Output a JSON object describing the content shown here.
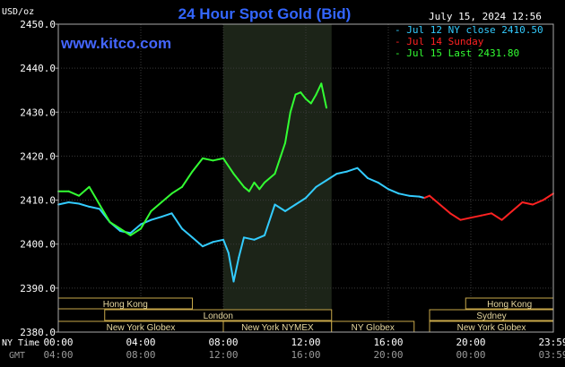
{
  "chart_data": {
    "type": "line",
    "title": "24 Hour Spot Gold (Bid)",
    "ylabel": "USD/oz",
    "timestamp": "July 15, 2024 12:56",
    "watermark": "www.kitco.com",
    "ylim": [
      2380,
      2450
    ],
    "yticks": [
      {
        "value": 2450,
        "label": "2450.0"
      },
      {
        "value": 2440,
        "label": "2440.0"
      },
      {
        "value": 2430,
        "label": "2430.0"
      },
      {
        "value": 2420,
        "label": "2420.0"
      },
      {
        "value": 2410,
        "label": "2410.0"
      },
      {
        "value": 2400,
        "label": "2400.0"
      },
      {
        "value": 2390,
        "label": "2390.0"
      },
      {
        "value": 2380,
        "label": "2380.0"
      }
    ],
    "xlim": [
      0,
      24
    ],
    "xticks_ny": [
      {
        "value": 0,
        "label": "00:00"
      },
      {
        "value": 4,
        "label": "04:00"
      },
      {
        "value": 8,
        "label": "08:00"
      },
      {
        "value": 12,
        "label": "12:00"
      },
      {
        "value": 16,
        "label": "16:00"
      },
      {
        "value": 20,
        "label": "20:00"
      },
      {
        "value": 24,
        "label": "23:59"
      }
    ],
    "xticks_gmt": [
      {
        "value": 0,
        "label": "04:00"
      },
      {
        "value": 4,
        "label": "08:00"
      },
      {
        "value": 8,
        "label": "12:00"
      },
      {
        "value": 12,
        "label": "16:00"
      },
      {
        "value": 16,
        "label": "20:00"
      },
      {
        "value": 20,
        "label": "00:00"
      },
      {
        "value": 24,
        "label": "03:59"
      }
    ],
    "row_labels": {
      "ny": "NY Time",
      "gmt": "GMT"
    },
    "highlight_range": [
      8,
      13.25
    ],
    "legend": [
      {
        "label": "Jul 12 NY close 2410.50",
        "color": "#33ccff"
      },
      {
        "label": "Jul 14 Sunday",
        "color": "#ff2222"
      },
      {
        "label": "Jul 15 Last 2431.80",
        "color": "#33ff33"
      }
    ],
    "series": [
      {
        "name": "Jul 12 NY close 2410.50",
        "color": "#33ccff",
        "x": [
          0,
          0.5,
          1,
          1.5,
          2,
          2.5,
          3,
          3.5,
          4,
          4.5,
          5,
          5.5,
          6,
          6.5,
          7,
          7.5,
          8,
          8.25,
          8.5,
          8.75,
          9,
          9.5,
          10,
          10.5,
          11,
          11.5,
          12,
          12.5,
          13,
          13.5,
          14,
          14.5,
          15,
          15.5,
          16,
          16.5,
          17,
          17.5,
          17.75
        ],
        "values": [
          2409,
          2409.5,
          2409.2,
          2408.5,
          2408,
          2405,
          2403,
          2402.5,
          2404.5,
          2405.5,
          2406.2,
          2407,
          2403.5,
          2401.5,
          2399.5,
          2400.5,
          2401,
          2398,
          2391.5,
          2397,
          2401.5,
          2401,
          2402,
          2409,
          2407.5,
          2409,
          2410.5,
          2413,
          2414.5,
          2416,
          2416.5,
          2417.3,
          2415,
          2414,
          2412.5,
          2411.5,
          2411,
          2410.8,
          2410.5
        ]
      },
      {
        "name": "Jul 14 Sunday",
        "color": "#ff2222",
        "x": [
          17.75,
          18,
          18.5,
          19,
          19.5,
          20,
          20.5,
          21,
          21.5,
          22,
          22.5,
          23,
          23.5,
          24
        ],
        "values": [
          2410.5,
          2411,
          2409,
          2407,
          2405.5,
          2406,
          2406.5,
          2407,
          2405.5,
          2407.5,
          2409.5,
          2409,
          2410,
          2411.5
        ]
      },
      {
        "name": "Jul 15 Last 2431.80",
        "color": "#33ff33",
        "x": [
          0,
          0.5,
          1,
          1.5,
          2,
          2.5,
          3,
          3.5,
          4,
          4.5,
          5,
          5.5,
          6,
          6.5,
          7,
          7.5,
          8,
          8.5,
          9,
          9.25,
          9.5,
          9.75,
          10,
          10.5,
          11,
          11.25,
          11.5,
          11.75,
          12,
          12.25,
          12.5,
          12.75,
          13
        ],
        "values": [
          2412,
          2412,
          2411,
          2413,
          2409,
          2405,
          2403.5,
          2402,
          2403.5,
          2407.5,
          2409.5,
          2411.5,
          2413,
          2416.5,
          2419.5,
          2419,
          2419.5,
          2416,
          2413,
          2412,
          2414,
          2412.5,
          2414,
          2416,
          2423,
          2430,
          2434,
          2434.5,
          2433,
          2432,
          2434,
          2436.5,
          2431
        ]
      }
    ],
    "sessions": [
      {
        "label": "Hong Kong",
        "start": 0,
        "end": 6.5
      },
      {
        "label": "London",
        "start": 2.25,
        "end": 13.25
      },
      {
        "label": "New York Globex",
        "start": 0,
        "end": 8
      },
      {
        "label": "New York NYMEX",
        "start": 8,
        "end": 13.25
      },
      {
        "label": "NY Globex",
        "start": 13.25,
        "end": 17.25
      },
      {
        "label": "Hong Kong",
        "start": 19.75,
        "end": 24
      },
      {
        "label": "Sydney",
        "start": 18,
        "end": 24
      },
      {
        "label": "New York Globex",
        "start": 18,
        "end": 24
      }
    ]
  }
}
